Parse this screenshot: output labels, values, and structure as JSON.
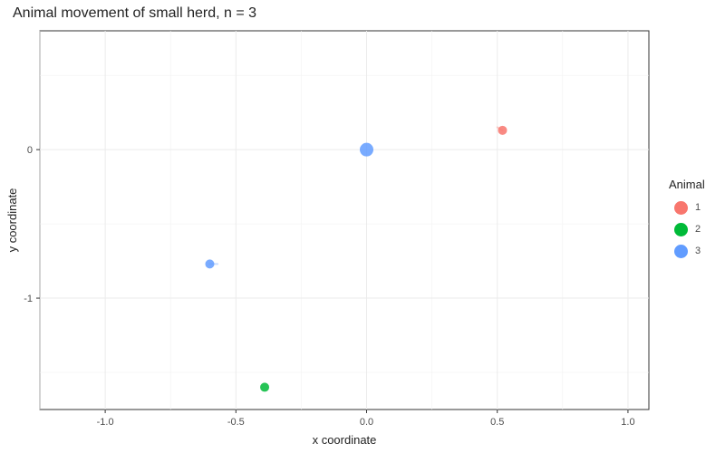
{
  "chart_data": {
    "type": "scatter",
    "title": "Animal movement of small herd, n = 3",
    "xlabel": "x coordinate",
    "ylabel": "y coordinate",
    "xlim": [
      -1.25,
      1.08
    ],
    "ylim": [
      -1.75,
      0.8
    ],
    "x_ticks": [
      -1.0,
      -0.5,
      0.0,
      0.5,
      1.0
    ],
    "x_tick_labels": [
      "-1.0",
      "-0.5",
      "0.0",
      "0.5",
      "1.0"
    ],
    "y_ticks": [
      0,
      -1
    ],
    "y_tick_labels": [
      "0",
      "-1"
    ],
    "grid": true,
    "legend": {
      "title": "Animal",
      "placement": "right"
    },
    "series": [
      {
        "name": "1",
        "color": "#F8766D",
        "x": [
          0.52
        ],
        "y": [
          0.13
        ],
        "trail": [
          [
            0.5,
            0.15
          ],
          [
            0.52,
            0.13
          ]
        ]
      },
      {
        "name": "2",
        "color": "#00BA38",
        "x": [
          -0.39
        ],
        "y": [
          -1.6
        ],
        "trail": [
          [
            -0.39,
            -1.6
          ]
        ]
      },
      {
        "name": "3",
        "color": "#619CFF",
        "x": [
          -0.6,
          0.0
        ],
        "y": [
          -0.77,
          0.0
        ],
        "trail": [
          [
            -0.57,
            -0.77
          ],
          [
            -0.6,
            -0.77
          ]
        ]
      }
    ]
  }
}
